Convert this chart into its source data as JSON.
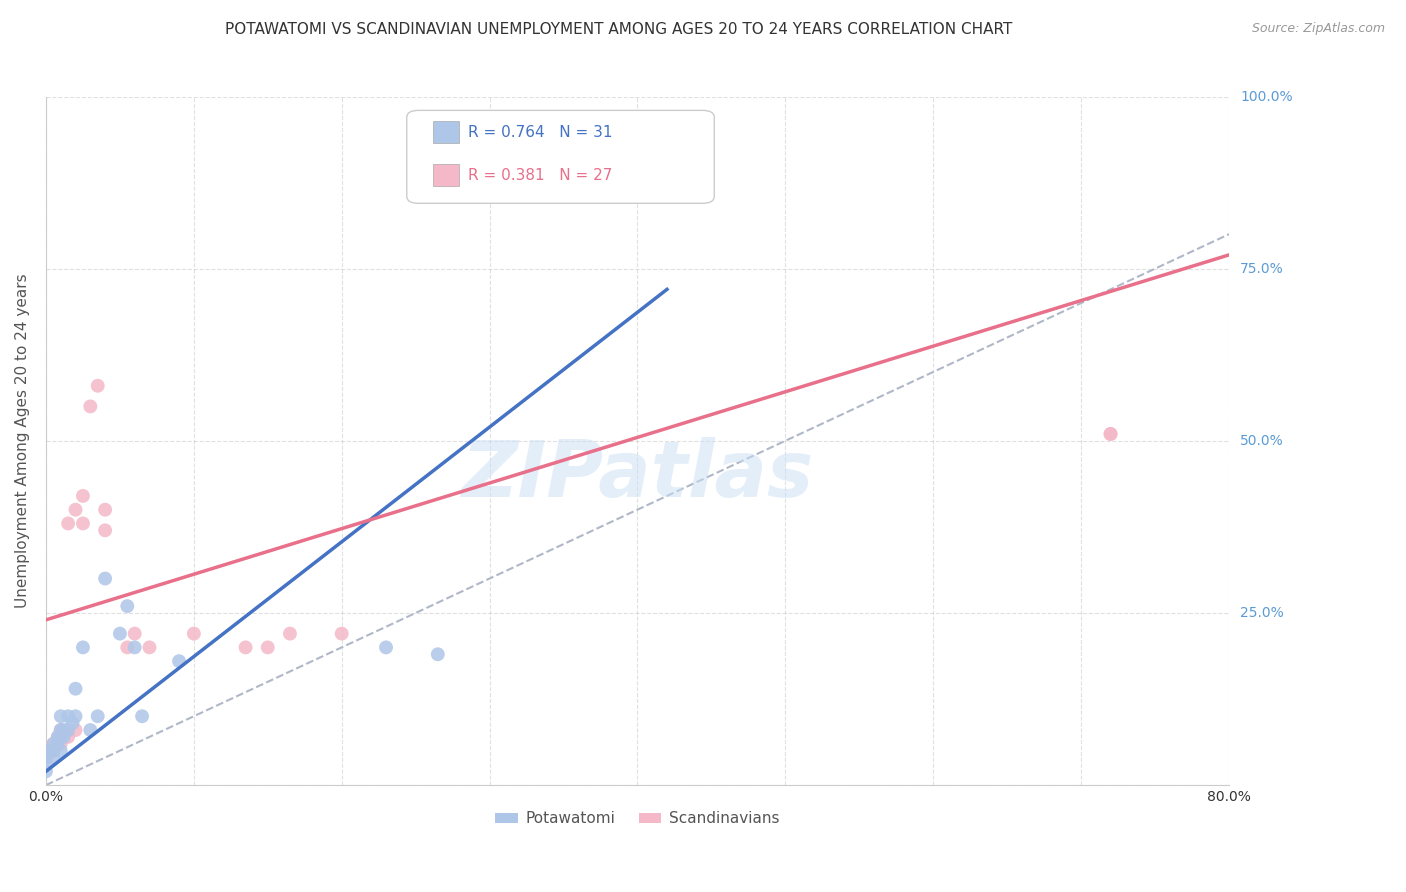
{
  "title": "POTAWATOMI VS SCANDINAVIAN UNEMPLOYMENT AMONG AGES 20 TO 24 YEARS CORRELATION CHART",
  "source": "Source: ZipAtlas.com",
  "ylabel": "Unemployment Among Ages 20 to 24 years",
  "xlim": [
    0.0,
    0.8
  ],
  "ylim": [
    0.0,
    1.0
  ],
  "x_ticks": [
    0.0,
    0.1,
    0.2,
    0.3,
    0.4,
    0.5,
    0.6,
    0.7,
    0.8
  ],
  "x_tick_labels": [
    "0.0%",
    "",
    "",
    "",
    "",
    "",
    "",
    "",
    "80.0%"
  ],
  "y_ticks": [
    0.0,
    0.25,
    0.5,
    0.75,
    1.0
  ],
  "y_tick_labels": [
    "",
    "25.0%",
    "50.0%",
    "75.0%",
    "100.0%"
  ],
  "potawatomi_color": "#aec6e8",
  "scandinavian_color": "#f4b8c8",
  "potawatomi_line_color": "#4472c4",
  "scandinavian_line_color": "#e8708a",
  "reference_line_color": "#b0b8c8",
  "legend_R1": "0.764",
  "legend_N1": "31",
  "legend_R2": "0.381",
  "legend_N2": "27",
  "pot_line_x0": 0.0,
  "pot_line_y0": 0.02,
  "pot_line_x1": 0.42,
  "pot_line_y1": 0.72,
  "scan_line_x0": 0.0,
  "scan_line_y0": 0.24,
  "scan_line_x1": 0.8,
  "scan_line_y1": 0.77,
  "potawatomi_x": [
    0.0,
    0.0,
    0.0,
    0.0,
    0.005,
    0.005,
    0.005,
    0.008,
    0.008,
    0.01,
    0.01,
    0.01,
    0.01,
    0.012,
    0.012,
    0.015,
    0.015,
    0.018,
    0.02,
    0.02,
    0.025,
    0.03,
    0.035,
    0.04,
    0.05,
    0.055,
    0.06,
    0.065,
    0.09,
    0.23,
    0.265
  ],
  "potawatomi_y": [
    0.02,
    0.03,
    0.04,
    0.05,
    0.04,
    0.05,
    0.06,
    0.06,
    0.07,
    0.05,
    0.07,
    0.08,
    0.1,
    0.07,
    0.08,
    0.08,
    0.1,
    0.09,
    0.1,
    0.14,
    0.2,
    0.08,
    0.1,
    0.3,
    0.22,
    0.26,
    0.2,
    0.1,
    0.18,
    0.2,
    0.19
  ],
  "scandinavian_x": [
    0.0,
    0.0,
    0.005,
    0.005,
    0.008,
    0.01,
    0.01,
    0.015,
    0.015,
    0.02,
    0.02,
    0.025,
    0.025,
    0.03,
    0.035,
    0.04,
    0.04,
    0.055,
    0.06,
    0.07,
    0.1,
    0.135,
    0.15,
    0.165,
    0.2,
    0.72,
    0.72
  ],
  "scandinavian_y": [
    0.04,
    0.05,
    0.05,
    0.06,
    0.07,
    0.06,
    0.08,
    0.07,
    0.38,
    0.08,
    0.4,
    0.38,
    0.42,
    0.55,
    0.58,
    0.37,
    0.4,
    0.2,
    0.22,
    0.2,
    0.22,
    0.2,
    0.2,
    0.22,
    0.22,
    0.51,
    0.51
  ],
  "background_color": "#ffffff",
  "grid_color": "#cccccc",
  "watermark_text": "ZIPatlas",
  "title_fontsize": 11,
  "axis_label_fontsize": 11,
  "tick_fontsize": 10,
  "marker_size": 100
}
